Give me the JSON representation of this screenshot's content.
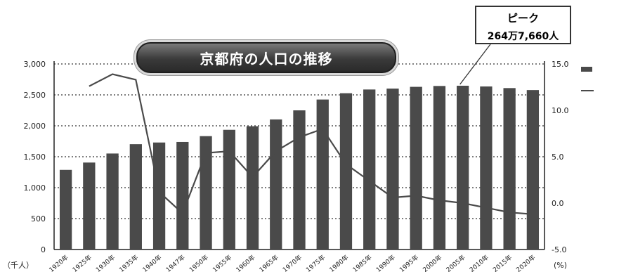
{
  "chart_data": {
    "type": "bar",
    "title": "京都府の人口の推移",
    "callout": {
      "line1": "ピーク",
      "line2": "264万7,660人",
      "target_index": 17
    },
    "y_left_unit": "（千人）",
    "y_right_unit": "(%)",
    "ylim_left": [
      0,
      3000
    ],
    "ylim_right": [
      -5.0,
      15.0
    ],
    "y_left_ticks": [
      "0",
      "500",
      "1,000",
      "1,500",
      "2,000",
      "2,500",
      "3,000"
    ],
    "y_right_ticks": [
      "-5.0",
      "0.0",
      "5.0",
      "10.0",
      "15.0"
    ],
    "categories": [
      "1920年",
      "1925年",
      "1930年",
      "1935年",
      "1940年",
      "1947年",
      "1950年",
      "1955年",
      "1960年",
      "1965年",
      "1970年",
      "1975年",
      "1980年",
      "1985年",
      "1990年",
      "1995年",
      "2000年",
      "2005年",
      "2010年",
      "2015年",
      "2020年"
    ],
    "series": [
      {
        "kind": "bar",
        "axis": "left",
        "values": [
          1287,
          1406,
          1552,
          1703,
          1730,
          1739,
          1833,
          1935,
          1993,
          2103,
          2250,
          2425,
          2527,
          2587,
          2602,
          2630,
          2644,
          2648,
          2636,
          2610,
          2578
        ]
      },
      {
        "kind": "line",
        "axis": "right",
        "values": [
          null,
          12.6,
          13.9,
          13.3,
          1.2,
          -1.1,
          5.4,
          5.6,
          2.8,
          5.6,
          7.1,
          8.0,
          4.2,
          2.4,
          0.6,
          0.8,
          0.3,
          0.0,
          -0.5,
          -1.0,
          -1.2
        ]
      }
    ],
    "legend": {
      "position": "right",
      "entries": [
        "",
        ""
      ]
    },
    "grid": "dotted horizontal"
  }
}
